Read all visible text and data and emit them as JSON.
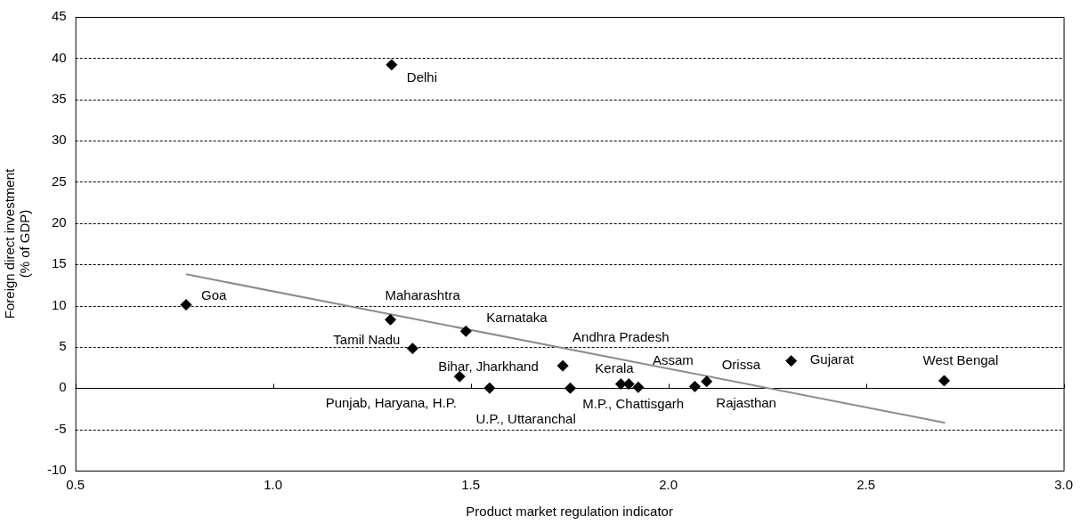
{
  "chart_data": {
    "type": "scatter",
    "xlabel": "Product market regulation indicator",
    "ylabel": "Foreign direct investment\n(% of GDP)",
    "xlim": [
      0.5,
      3.0
    ],
    "xticks": [
      {
        "value": 0.5,
        "label": "0.5"
      },
      {
        "value": 1.0,
        "label": "1.0"
      },
      {
        "value": 1.5,
        "label": "1.5"
      },
      {
        "value": 2.0,
        "label": "2.0"
      },
      {
        "value": 2.5,
        "label": "2.5"
      },
      {
        "value": 3.0,
        "label": "3.0"
      }
    ],
    "ylim": [
      -10,
      45
    ],
    "yticks": [
      -10,
      -5,
      0,
      5,
      10,
      15,
      20,
      25,
      30,
      35,
      40,
      45
    ],
    "grid": "y",
    "legend": false,
    "marker": "diamond",
    "ref_lines": [
      {
        "axis": "y",
        "value": 0,
        "color": "#000000",
        "line_style": "solid"
      }
    ],
    "series": [
      {
        "color": "#000000",
        "x": [
          0.78,
          1.3,
          1.297,
          1.488,
          1.353,
          1.733,
          1.472,
          1.548,
          1.752,
          1.88,
          1.9,
          1.924,
          2.067,
          2.097,
          2.311,
          2.698
        ],
        "values": [
          10.1,
          39.2,
          8.3,
          6.9,
          4.8,
          2.7,
          1.4,
          0,
          0,
          0.5,
          0.5,
          0.1,
          0.2,
          0.8,
          3.3,
          0.9
        ]
      },
      {
        "type": "line",
        "color": "#8c8c8c",
        "marker": "none",
        "x": [
          0.78,
          2.7
        ],
        "values": [
          13.8,
          -4.2
        ]
      }
    ],
    "annotations": [
      {
        "text": "Goa",
        "x": 0.78,
        "y": 10.1
      },
      {
        "text": "Delhi",
        "x": 1.3,
        "y": 39.2
      },
      {
        "text": "Maharashtra",
        "x": 1.297,
        "y": 8.3
      },
      {
        "text": "Karnataka",
        "x": 1.488,
        "y": 6.9
      },
      {
        "text": "Tamil Nadu",
        "x": 1.353,
        "y": 4.8
      },
      {
        "text": "Andhra Pradesh",
        "x": 1.733,
        "y": 2.7
      },
      {
        "text": "Bihar, Jharkhand",
        "x": 1.472,
        "y": 1.4
      },
      {
        "text": "Punjab, Haryana, H.P.",
        "x": 1.548,
        "y": 0
      },
      {
        "text": "U.P., Uttaranchal",
        "x": 1.752,
        "y": 0
      },
      {
        "text": "Kerala",
        "x": 1.88,
        "y": 0.5
      },
      {
        "text": "M.P., Chattisgarh",
        "x": 1.9,
        "y": 0.5
      },
      {
        "text": "Assam",
        "x": 1.924,
        "y": 0.1
      },
      {
        "text": "Rajasthan",
        "x": 2.067,
        "y": 0.2
      },
      {
        "text": "Orissa",
        "x": 2.097,
        "y": 0.8
      },
      {
        "text": "Gujarat",
        "x": 2.311,
        "y": 3.3
      },
      {
        "text": "West Bengal",
        "x": 2.698,
        "y": 0.9
      }
    ]
  }
}
